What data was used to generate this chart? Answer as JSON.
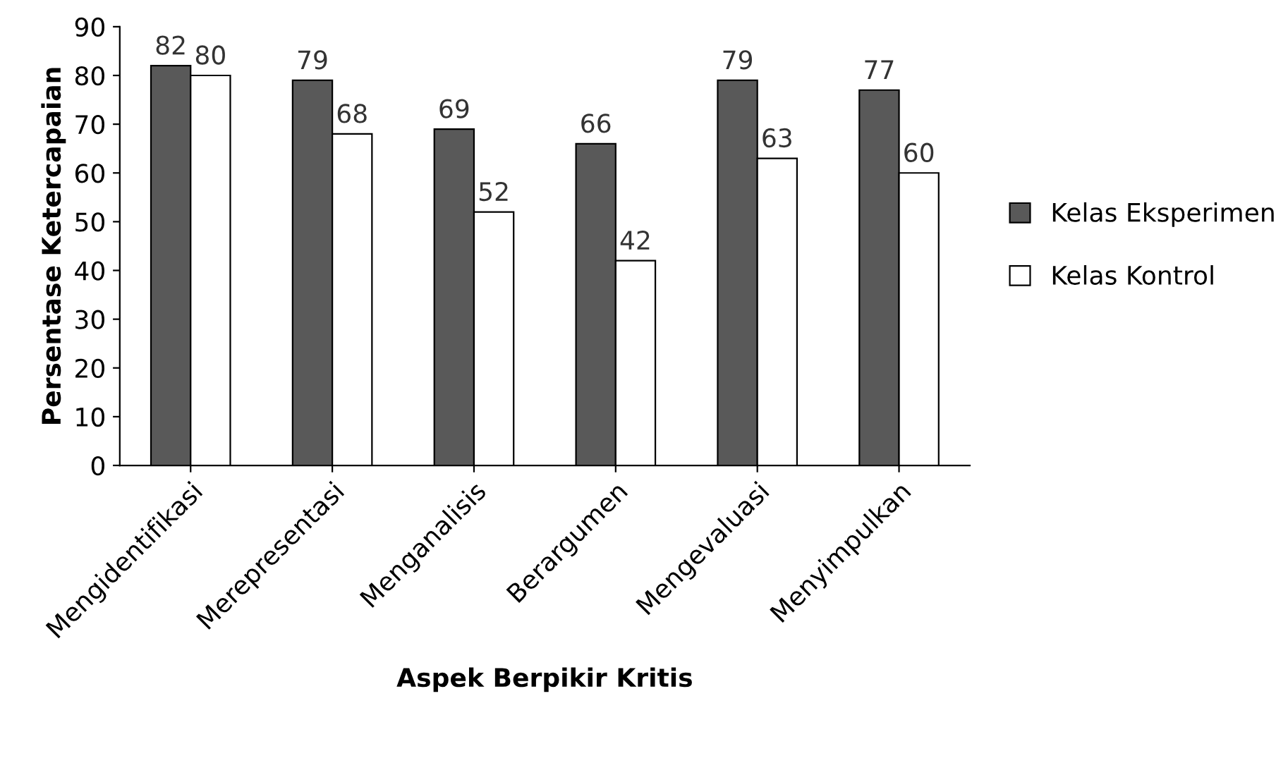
{
  "chart_data": {
    "type": "bar",
    "categories": [
      "Mengidentifikasi",
      "Merepresentasi",
      "Menganalisis",
      "Berargumen",
      "Mengevaluasi",
      "Menyimpulkan"
    ],
    "series": [
      {
        "name": "Kelas Eksperimen",
        "color": "#595959",
        "values": [
          82,
          79,
          69,
          66,
          79,
          77
        ]
      },
      {
        "name": "Kelas Kontrol",
        "color": "#ffffff",
        "values": [
          80,
          68,
          52,
          42,
          63,
          60
        ]
      }
    ],
    "xlabel": "Aspek Berpikir Kritis",
    "ylabel": "Persentase Ketercapaian",
    "ylim": [
      0,
      90
    ],
    "yticks": [
      0,
      10,
      20,
      30,
      40,
      50,
      60,
      70,
      80,
      90
    ],
    "data_labels": true,
    "legend": "right",
    "grid": false
  }
}
